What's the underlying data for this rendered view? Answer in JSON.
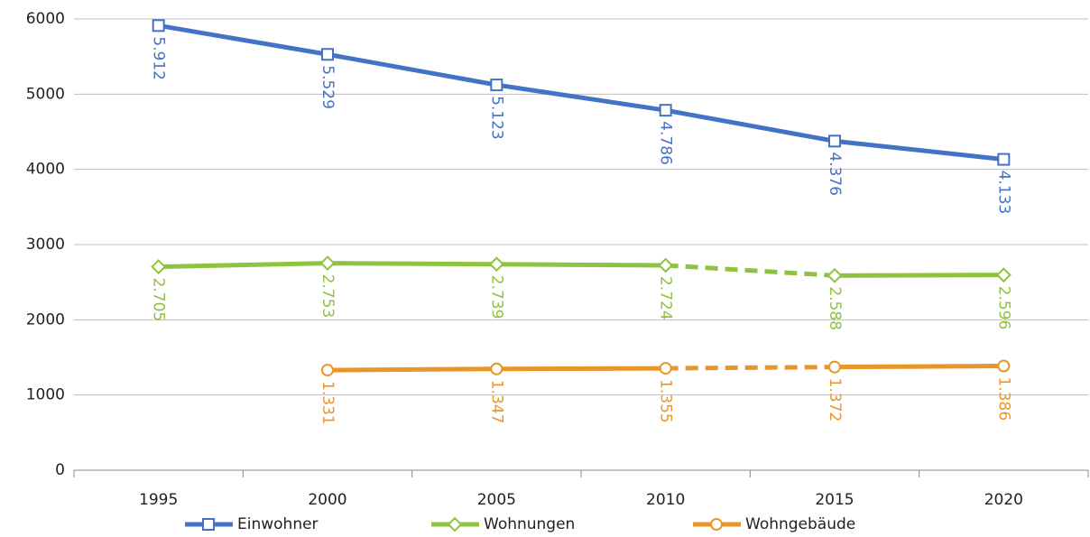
{
  "chart_data": {
    "type": "line",
    "categories": [
      "1995",
      "2000",
      "2005",
      "2010",
      "2015",
      "2020"
    ],
    "ylim": [
      0,
      6000
    ],
    "yticks": [
      0,
      1000,
      2000,
      3000,
      4000,
      5000,
      6000
    ],
    "grid": true,
    "legend": "bottom",
    "series": [
      {
        "name": "Einwohner",
        "color": "#4472c4",
        "marker": "square",
        "values": [
          5912,
          5529,
          5123,
          4786,
          4376,
          4133
        ],
        "value_labels": [
          "5.912",
          "5.529",
          "5.123",
          "4.786",
          "4.376",
          "4.133"
        ],
        "dashed_segments": []
      },
      {
        "name": "Wohnungen",
        "color": "#8fc240",
        "marker": "diamond",
        "values": [
          2705,
          2753,
          2739,
          2724,
          2588,
          2596
        ],
        "value_labels": [
          "2.705",
          "2.753",
          "2.739",
          "2.724",
          "2.588",
          "2.596"
        ],
        "dashed_segments": [
          3
        ]
      },
      {
        "name": "Wohngebäude",
        "color": "#e8962a",
        "marker": "circle",
        "values": [
          null,
          1331,
          1347,
          1355,
          1372,
          1386
        ],
        "value_labels": [
          null,
          "1.331",
          "1.347",
          "1.355",
          "1.372",
          "1.386"
        ],
        "dashed_segments": [
          3
        ]
      }
    ]
  }
}
